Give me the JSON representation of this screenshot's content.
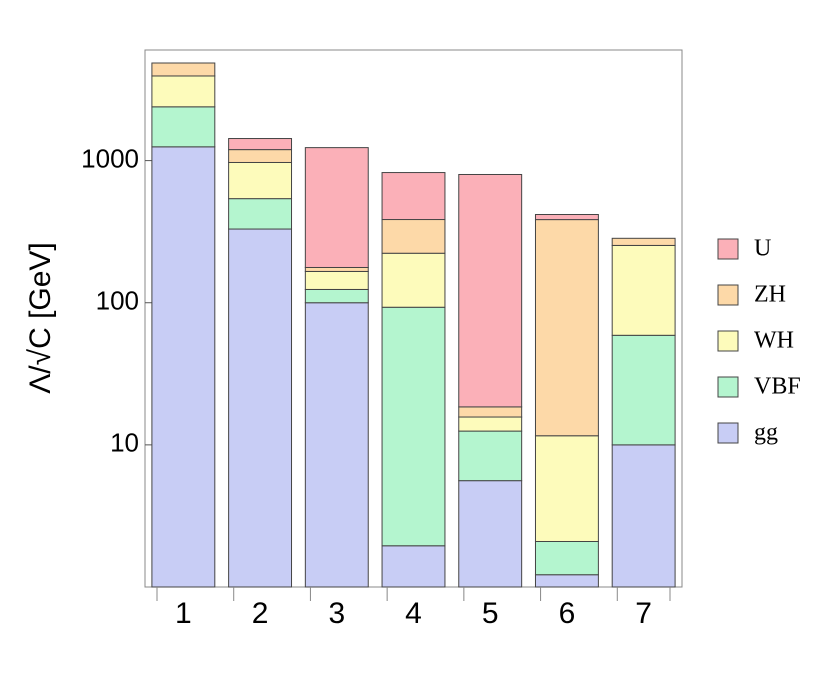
{
  "chart_data": {
    "type": "stacked_bar",
    "y_label": "Λ/√C [GeV]",
    "categories": [
      "1",
      "2",
      "3",
      "4",
      "5",
      "6",
      "7"
    ],
    "series": [
      {
        "name": "gg",
        "color": "#c8cdf5",
        "values": [
          1250,
          330,
          100,
          1.95,
          5.6,
          1.22,
          10
        ]
      },
      {
        "name": "VBF",
        "color": "#b4f5cf",
        "values": [
          1140,
          210,
          24,
          91,
          6.9,
          0.87,
          49
        ]
      },
      {
        "name": "WH",
        "color": "#fdfbbb",
        "values": [
          1550,
          430,
          42,
          130,
          3.2,
          9.5,
          194
        ]
      },
      {
        "name": "ZH",
        "color": "#fdd9a8",
        "values": [
          920,
          225,
          11,
          162,
          2.8,
          373,
          31
        ]
      },
      {
        "name": "U",
        "color": "#fbb0b8",
        "values": [
          null,
          235,
          1057,
          439,
          780,
          33,
          null
        ]
      }
    ],
    "ylim": [
      1,
      6000
    ],
    "yticks": [
      10,
      100,
      1000
    ],
    "log_scale": true,
    "legend": "right"
  }
}
